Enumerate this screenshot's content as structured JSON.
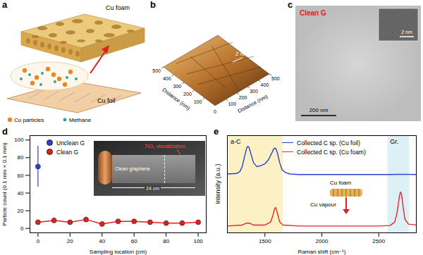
{
  "figure": {
    "a": {
      "panel_label": "a",
      "labels": {
        "foam": "Cu foam",
        "foil": "Cu foil",
        "particles": "Cu particles",
        "methane": "Methane"
      }
    },
    "b": {
      "panel_label": "b",
      "height_label": "2 nm",
      "axis_label": "Distance (nm)",
      "ticks": [
        0,
        100,
        200,
        300,
        400,
        500
      ]
    },
    "c": {
      "panel_label": "c",
      "title": "Clean G",
      "scale_bar": "200 nm",
      "inset_scale_bar": "2 nm"
    }
  },
  "chart_data": [
    {
      "panel_label": "d",
      "type": "scatter",
      "x_label": "Sampling location (cm)",
      "y_label": "Particle count (0.1 mm × 0.1 mm)",
      "xlim": [
        -5,
        105
      ],
      "ylim": [
        -5,
        105
      ],
      "xticks": [
        0,
        20,
        40,
        60,
        80,
        100
      ],
      "yticks": [
        0,
        20,
        40,
        60,
        80,
        100
      ],
      "legend": "top-left",
      "series": [
        {
          "name": "Unclean G",
          "color": "#2f3fd0",
          "marker": "circle",
          "x": [
            0
          ],
          "values": [
            70
          ],
          "errors": [
            23
          ]
        },
        {
          "name": "Clean G",
          "color": "#e02020",
          "marker": "circle",
          "line_style": "solid",
          "x": [
            0,
            10,
            20,
            30,
            40,
            50,
            60,
            70,
            80,
            90,
            100
          ],
          "values": [
            7,
            9,
            7,
            10,
            5,
            8,
            8,
            7,
            6,
            6,
            7
          ],
          "errors": [
            2,
            3,
            2,
            3,
            2,
            2,
            2,
            2,
            2,
            3,
            2
          ]
        }
      ],
      "inset_labels": {
        "visualization": "TiO₂ visualization",
        "length": "24 cm",
        "sample": "Clean graphene"
      }
    },
    {
      "panel_label": "e",
      "type": "line",
      "x_label": "Raman shift (cm⁻¹)",
      "y_label": "Intensity (a.u.)",
      "xlim": [
        1170,
        2830
      ],
      "ylim": [
        0,
        10
      ],
      "xticks": [
        1500,
        2000,
        2500
      ],
      "yticks": [],
      "tick_labels": "x",
      "legend": "top",
      "series": [
        {
          "name": "Collected C sp. (Cu foil)",
          "color": "#2a3fd8",
          "x": [
            1170,
            1250,
            1280,
            1300,
            1320,
            1340,
            1350,
            1360,
            1380,
            1400,
            1430,
            1460,
            1500,
            1530,
            1560,
            1580,
            1595,
            1610,
            1630,
            1650,
            1680,
            1720,
            1800,
            2000,
            2200,
            2400,
            2600,
            2700,
            2830
          ],
          "values": [
            6.05,
            6.1,
            6.3,
            6.8,
            7.8,
            8.7,
            8.9,
            8.8,
            8.0,
            7.2,
            6.8,
            6.9,
            7.1,
            7.5,
            8.2,
            8.7,
            8.7,
            8.2,
            7.2,
            6.5,
            6.2,
            6.05,
            6.0,
            6.0,
            6.0,
            6.0,
            6.0,
            6.02,
            6.0
          ]
        },
        {
          "name": "Collected C sp. (Cu foam)",
          "color": "#e02828",
          "x": [
            1170,
            1300,
            1340,
            1360,
            1400,
            1500,
            1550,
            1570,
            1585,
            1595,
            1610,
            1630,
            1660,
            1800,
            2000,
            2300,
            2500,
            2600,
            2640,
            2660,
            2680,
            2690,
            2700,
            2715,
            2730,
            2760,
            2830
          ],
          "values": [
            0.7,
            0.8,
            1.0,
            1.0,
            0.8,
            0.8,
            1.1,
            1.8,
            2.5,
            2.6,
            2.0,
            1.1,
            0.8,
            0.7,
            0.7,
            0.7,
            0.7,
            0.75,
            1.1,
            2.0,
            3.6,
            4.2,
            4.0,
            2.6,
            1.4,
            0.9,
            0.8
          ]
        }
      ],
      "shaded_regions": [
        {
          "label": "a-C",
          "x": [
            1180,
            1660
          ],
          "color": "#fbf1c4"
        },
        {
          "label": "Gr.",
          "x": [
            2580,
            2770
          ],
          "color": "#dcf0f6"
        }
      ],
      "inset_labels": {
        "source": "Cu foam",
        "vapour": "Cu vapour"
      }
    }
  ]
}
